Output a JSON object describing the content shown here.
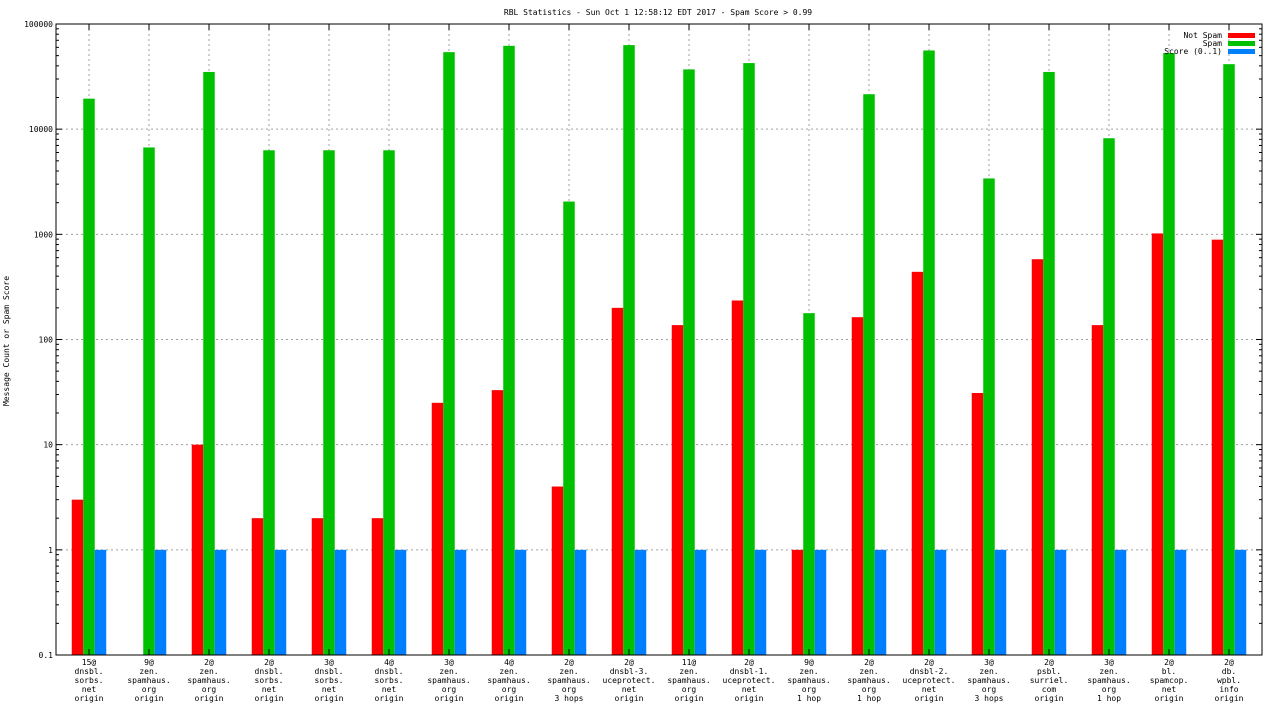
{
  "chart_data": {
    "type": "bar",
    "title": "RBL Statistics - Sun Oct  1 12:58:12 EDT 2017 - Spam Score > 0.99",
    "ylabel": "Message Count or Spam Score",
    "xlabel": "",
    "scale": "log",
    "ylim": [
      0.1,
      100000
    ],
    "y_ticks": [
      "0.1",
      "1",
      "10",
      "100",
      "1000",
      "10000",
      "100000"
    ],
    "grid": true,
    "legend_position": "top-right",
    "categories": [
      [
        "15@",
        "dnsbl.",
        "sorbs.",
        "net",
        "origin"
      ],
      [
        "9@",
        "zen.",
        "spamhaus.",
        "org",
        "origin"
      ],
      [
        "2@",
        "zen.",
        "spamhaus.",
        "org",
        "origin"
      ],
      [
        "2@",
        "dnsbl.",
        "sorbs.",
        "net",
        "origin"
      ],
      [
        "3@",
        "dnsbl.",
        "sorbs.",
        "net",
        "origin"
      ],
      [
        "4@",
        "dnsbl.",
        "sorbs.",
        "net",
        "origin"
      ],
      [
        "3@",
        "zen.",
        "spamhaus.",
        "org",
        "origin"
      ],
      [
        "4@",
        "zen.",
        "spamhaus.",
        "org",
        "origin"
      ],
      [
        "2@",
        "zen.",
        "spamhaus.",
        "org",
        "3 hops"
      ],
      [
        "2@",
        "dnsbl-3.",
        "uceprotect.",
        "net",
        "origin"
      ],
      [
        "11@",
        "zen.",
        "spamhaus.",
        "org",
        "origin"
      ],
      [
        "2@",
        "dnsbl-1.",
        "uceprotect.",
        "net",
        "origin"
      ],
      [
        "9@",
        "zen.",
        "spamhaus.",
        "org",
        "1 hop"
      ],
      [
        "2@",
        "zen.",
        "spamhaus.",
        "org",
        "1 hop"
      ],
      [
        "2@",
        "dnsbl-2.",
        "uceprotect.",
        "net",
        "origin"
      ],
      [
        "3@",
        "zen.",
        "spamhaus.",
        "org",
        "3 hops"
      ],
      [
        "2@",
        "psbl.",
        "surriel.",
        "com",
        "origin"
      ],
      [
        "3@",
        "zen.",
        "spamhaus.",
        "org",
        "1 hop"
      ],
      [
        "2@",
        "bl.",
        "spamcop.",
        "net",
        "origin"
      ],
      [
        "2@",
        "db.",
        "wpbl.",
        "info",
        "origin"
      ]
    ],
    "series": [
      {
        "name": "Not Spam",
        "color": "#ff0000",
        "values": [
          3,
          null,
          10,
          2,
          2,
          2,
          25,
          33,
          4,
          200,
          137,
          235,
          1,
          163,
          440,
          31,
          580,
          137,
          1020,
          890
        ]
      },
      {
        "name": "Spam",
        "color": "#00c000",
        "values": [
          19500,
          6700,
          35000,
          6300,
          6300,
          6300,
          54000,
          62000,
          2050,
          63000,
          37000,
          42500,
          178,
          21500,
          56000,
          3400,
          35000,
          8200,
          53000,
          41500
        ]
      },
      {
        "name": "Score (0..1)",
        "color": "#0080ff",
        "values": [
          1,
          1,
          1,
          1,
          1,
          1,
          1,
          1,
          1,
          1,
          1,
          1,
          1,
          1,
          1,
          1,
          1,
          1,
          1,
          1
        ]
      }
    ]
  }
}
